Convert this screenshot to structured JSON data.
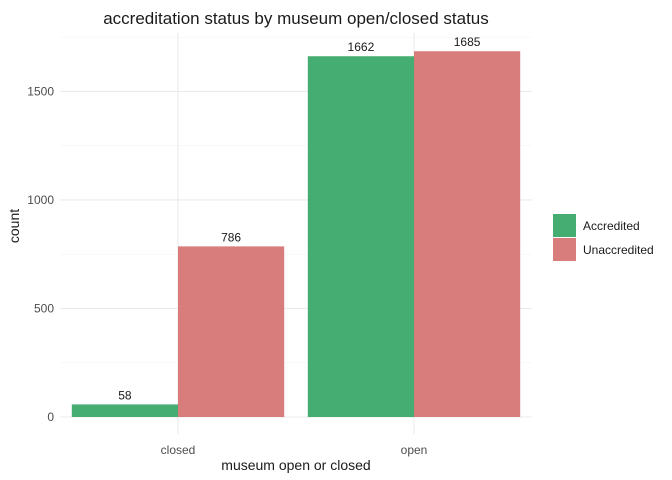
{
  "chart_data": {
    "type": "bar",
    "title": "accreditation status by museum open/closed status",
    "xlabel": "museum open or closed",
    "ylabel": "count",
    "categories": [
      "closed",
      "open"
    ],
    "series": [
      {
        "name": "Accredited",
        "values": [
          58,
          1662
        ],
        "color": "#2ca25f"
      },
      {
        "name": "Unaccredited",
        "values": [
          786,
          1685
        ],
        "color": "#d36a6a"
      }
    ],
    "ylim": [
      0,
      1769
    ],
    "yticks": [
      0,
      500,
      1000,
      1500
    ],
    "grid": true,
    "legend_position": "right",
    "bar_opacity": 0.88
  }
}
